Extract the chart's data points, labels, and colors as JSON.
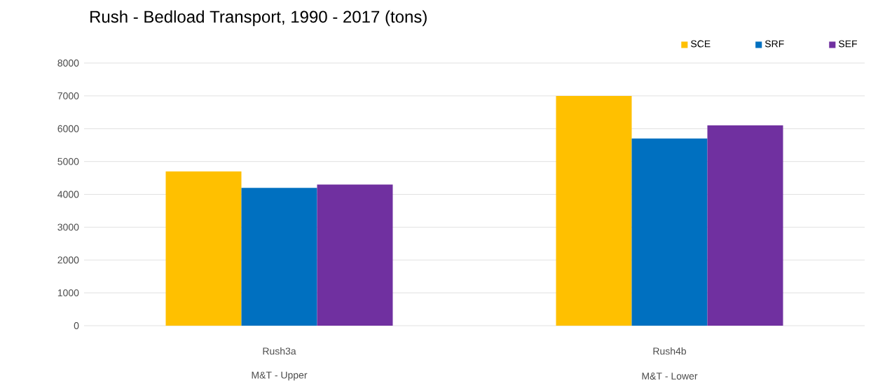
{
  "chart_data": {
    "type": "bar",
    "title": "Rush - Bedload Transport, 1990 - 2017 (tons)",
    "categories": [
      "Rush3a",
      "Rush4b"
    ],
    "series": [
      {
        "name": "SCE",
        "color": "#ffc000",
        "values": [
          4700,
          7000
        ]
      },
      {
        "name": "SRF",
        "color": "#0070c0",
        "values": [
          4200,
          5700
        ]
      },
      {
        "name": "SEF",
        "color": "#7030a0",
        "values": [
          4300,
          6100
        ]
      }
    ],
    "ylim": [
      0,
      8000
    ],
    "yticks": [
      0,
      1000,
      2000,
      3000,
      4000,
      5000,
      6000,
      7000,
      8000
    ],
    "grid": "y",
    "legend": "top right",
    "annotations": [
      "M&T - Upper",
      "M&T - Lower"
    ]
  }
}
